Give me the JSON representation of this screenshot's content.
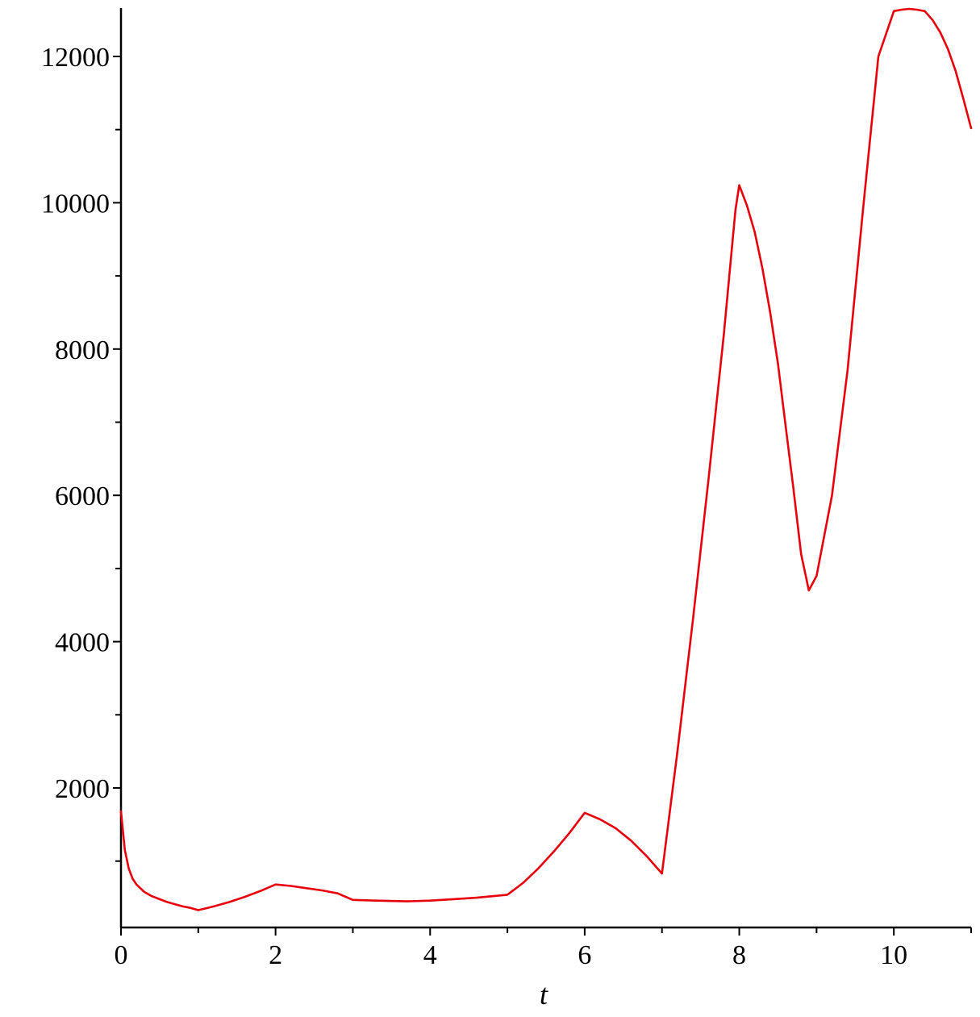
{
  "chart_data": {
    "type": "line",
    "title": "",
    "xlabel": "t",
    "ylabel": "",
    "xlim": [
      0,
      11
    ],
    "ylim": [
      0,
      12650
    ],
    "x_ticks": [
      0,
      2,
      4,
      6,
      8,
      10
    ],
    "x_minor_ticks": [
      1,
      3,
      5,
      7,
      9,
      11
    ],
    "x_tick_labels": [
      "0",
      "2",
      "4",
      "6",
      "8",
      "10"
    ],
    "y_ticks": [
      2000,
      4000,
      6000,
      8000,
      10000,
      12000
    ],
    "y_minor_ticks": [
      1000,
      3000,
      5000,
      7000,
      9000,
      11000
    ],
    "y_tick_labels": [
      "2000",
      "4000",
      "6000",
      "8000",
      "10000",
      "12000"
    ],
    "grid": false,
    "legend": "none",
    "series": [
      {
        "color": "#e8000b",
        "points": [
          [
            0,
            1680
          ],
          [
            0.05,
            1150
          ],
          [
            0.1,
            900
          ],
          [
            0.15,
            760
          ],
          [
            0.2,
            680
          ],
          [
            0.3,
            580
          ],
          [
            0.4,
            520
          ],
          [
            0.5,
            480
          ],
          [
            0.6,
            440
          ],
          [
            0.7,
            410
          ],
          [
            0.8,
            380
          ],
          [
            0.9,
            360
          ],
          [
            1,
            330
          ],
          [
            1.2,
            380
          ],
          [
            1.4,
            440
          ],
          [
            1.6,
            510
          ],
          [
            1.8,
            590
          ],
          [
            2,
            680
          ],
          [
            2.2,
            660
          ],
          [
            2.4,
            630
          ],
          [
            2.6,
            600
          ],
          [
            2.8,
            560
          ],
          [
            3,
            470
          ],
          [
            3.3,
            460
          ],
          [
            3.7,
            450
          ],
          [
            4.0,
            460
          ],
          [
            4.3,
            480
          ],
          [
            4.6,
            500
          ],
          [
            5,
            540
          ],
          [
            5.2,
            700
          ],
          [
            5.4,
            900
          ],
          [
            5.6,
            1130
          ],
          [
            5.8,
            1380
          ],
          [
            6,
            1660
          ],
          [
            6.2,
            1570
          ],
          [
            6.4,
            1450
          ],
          [
            6.6,
            1280
          ],
          [
            6.8,
            1070
          ],
          [
            7,
            830
          ],
          [
            7.2,
            2500
          ],
          [
            7.4,
            4300
          ],
          [
            7.6,
            6200
          ],
          [
            7.8,
            8200
          ],
          [
            7.95,
            9900
          ],
          [
            8,
            10240
          ],
          [
            8.1,
            9960
          ],
          [
            8.2,
            9600
          ],
          [
            8.3,
            9100
          ],
          [
            8.4,
            8500
          ],
          [
            8.5,
            7800
          ],
          [
            8.6,
            6950
          ],
          [
            8.7,
            6100
          ],
          [
            8.8,
            5200
          ],
          [
            8.9,
            4700
          ],
          [
            9,
            4900
          ],
          [
            9.2,
            6000
          ],
          [
            9.4,
            7700
          ],
          [
            9.6,
            9900
          ],
          [
            9.8,
            12000
          ],
          [
            10,
            12620
          ],
          [
            10.1,
            12640
          ],
          [
            10.2,
            12650
          ],
          [
            10.3,
            12640
          ],
          [
            10.4,
            12620
          ],
          [
            10.5,
            12500
          ],
          [
            10.6,
            12330
          ],
          [
            10.7,
            12100
          ],
          [
            10.8,
            11800
          ],
          [
            10.9,
            11420
          ],
          [
            11,
            11020
          ]
        ]
      }
    ]
  }
}
